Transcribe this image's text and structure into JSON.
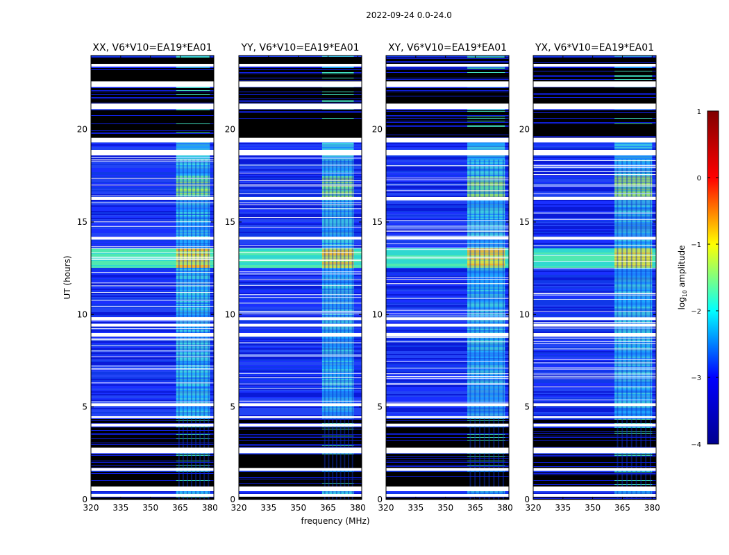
{
  "chart_data": {
    "type": "heatmap",
    "suptitle": "2022-09-24 0.0-24.0",
    "xlabel": "frequency (MHz)",
    "ylabel": "UT (hours)",
    "xlim": [
      320,
      382
    ],
    "ylim": [
      0,
      24
    ],
    "x_ticks": [
      "320",
      "335",
      "350",
      "365",
      "380"
    ],
    "y_ticks": [
      "0",
      "5",
      "10",
      "15",
      "20"
    ],
    "panels": [
      {
        "title": "XX, V6*V10=EA19*EA01",
        "rfi_band_mhz": [
          363,
          380
        ],
        "rfi_strength": 1.0
      },
      {
        "title": "YY, V6*V10=EA19*EA01",
        "rfi_band_mhz": [
          362,
          378
        ],
        "rfi_strength": 0.9
      },
      {
        "title": "XY, V6*V10=EA19*EA01",
        "rfi_band_mhz": [
          361,
          380
        ],
        "rfi_strength": 0.85
      },
      {
        "title": "YX, V6*V10=EA19*EA01",
        "rfi_band_mhz": [
          361,
          380
        ],
        "rfi_strength": 0.85
      }
    ],
    "flagged_white_hours": [
      [
        0.15,
        0.3
      ],
      [
        0.45,
        0.7
      ],
      [
        1.55,
        1.7
      ],
      [
        2.5,
        2.8
      ],
      [
        3.95,
        4.1
      ],
      [
        4.4,
        4.5
      ],
      [
        5.05,
        5.2
      ],
      [
        8.8,
        9.0
      ],
      [
        9.35,
        9.5
      ],
      [
        9.7,
        9.85
      ],
      [
        14.05,
        14.2
      ],
      [
        16.2,
        16.35
      ],
      [
        18.6,
        18.9
      ],
      [
        19.3,
        19.55
      ],
      [
        21.1,
        21.4
      ],
      [
        22.3,
        22.6
      ],
      [
        23.4,
        23.55
      ]
    ],
    "sparse_dark_hours": [
      [
        0.0,
        0.15
      ],
      [
        0.7,
        1.55
      ],
      [
        1.7,
        2.5
      ],
      [
        2.8,
        3.95
      ],
      [
        4.1,
        4.4
      ],
      [
        19.55,
        21.1
      ],
      [
        21.4,
        22.3
      ],
      [
        22.6,
        23.4
      ],
      [
        23.55,
        24.0
      ]
    ],
    "bright_band_hours": [
      12.6,
      13.6
    ],
    "colorbar": {
      "label": "log10 amplitude",
      "label_prefix": "log",
      "label_sub": "10",
      "label_suffix": " amplitude",
      "range": [
        -4,
        1
      ],
      "ticks": [
        "1",
        "0",
        "−1",
        "−2",
        "−3",
        "−4"
      ],
      "colormap": [
        "#00008f",
        "#0000ff",
        "#00ffff",
        "#ffff00",
        "#ff0000",
        "#800000"
      ]
    }
  }
}
